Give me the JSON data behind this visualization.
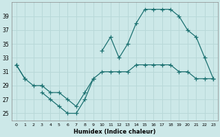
{
  "xlabel": "Humidex (Indice chaleur)",
  "bg_color": "#cce8e8",
  "grid_color": "#b8d8d8",
  "line_color": "#1a7070",
  "x": [
    0,
    1,
    2,
    3,
    4,
    5,
    6,
    7,
    8,
    9,
    10,
    11,
    12,
    13,
    14,
    15,
    16,
    17,
    18,
    19,
    20,
    21,
    22,
    23
  ],
  "series1": [
    32,
    30,
    29,
    29,
    28,
    28,
    27,
    26,
    28,
    30,
    31,
    31,
    31,
    31,
    32,
    32,
    32,
    32,
    32,
    31,
    31,
    30,
    30,
    30
  ],
  "series2": [
    32,
    30,
    null,
    29,
    null,
    null,
    null,
    null,
    null,
    null,
    34,
    36,
    33,
    35,
    38,
    40,
    40,
    40,
    40,
    39,
    37,
    36,
    33,
    30
  ],
  "series3": [
    null,
    null,
    null,
    28,
    27,
    26,
    25,
    25,
    27,
    30,
    null,
    null,
    null,
    null,
    null,
    null,
    null,
    null,
    null,
    null,
    null,
    null,
    null,
    null
  ],
  "ylim": [
    24,
    41
  ],
  "xlim": [
    -0.5,
    23.5
  ],
  "yticks": [
    25,
    27,
    29,
    31,
    33,
    35,
    37,
    39
  ],
  "xticks": [
    0,
    1,
    2,
    3,
    4,
    5,
    6,
    7,
    8,
    9,
    10,
    11,
    12,
    13,
    14,
    15,
    16,
    17,
    18,
    19,
    20,
    21,
    22,
    23
  ]
}
